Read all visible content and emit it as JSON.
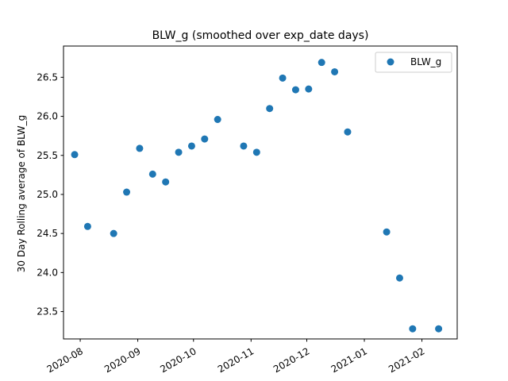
{
  "chart_data": {
    "type": "scatter",
    "title": "BLW_g (smoothed over exp_date days)",
    "xlabel": "",
    "ylabel": "30 Day Rolling average of BLW_g",
    "xlim": [
      "2020-07-23",
      "2021-02-20"
    ],
    "ylim": [
      23.15,
      26.9
    ],
    "x_ticks": [
      "2020-08",
      "2020-09",
      "2020-10",
      "2020-11",
      "2020-12",
      "2021-01",
      "2021-02"
    ],
    "y_ticks": [
      "23.5",
      "24.0",
      "24.5",
      "25.0",
      "25.5",
      "26.0",
      "26.5"
    ],
    "grid": false,
    "legend_position": "top-right",
    "marker_color": "#1f77b4",
    "series": [
      {
        "name": "BLW_g",
        "x": [
          "2020-07-29",
          "2020-08-05",
          "2020-08-19",
          "2020-08-26",
          "2020-09-02",
          "2020-09-09",
          "2020-09-16",
          "2020-09-23",
          "2020-09-30",
          "2020-10-07",
          "2020-10-14",
          "2020-10-28",
          "2020-11-04",
          "2020-11-11",
          "2020-11-18",
          "2020-11-25",
          "2020-12-02",
          "2020-12-09",
          "2020-12-16",
          "2020-12-23",
          "2021-01-13",
          "2021-01-20",
          "2021-01-27",
          "2021-02-10"
        ],
        "y": [
          25.51,
          24.59,
          24.5,
          25.03,
          25.59,
          25.26,
          25.16,
          25.54,
          25.62,
          25.71,
          25.96,
          25.62,
          25.54,
          26.1,
          26.49,
          26.34,
          26.35,
          26.69,
          26.57,
          25.8,
          24.52,
          23.93,
          23.28,
          23.28
        ]
      }
    ]
  }
}
